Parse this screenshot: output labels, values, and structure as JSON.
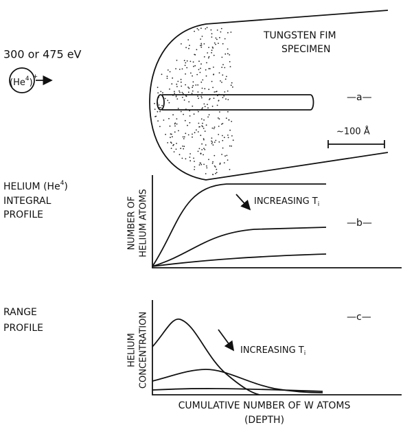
{
  "panel_a": {
    "energy": "300 or 475 eV",
    "ion": {
      "open": "(He",
      "mass": "4",
      "close": ")",
      "charge": "+"
    },
    "specimen_label": [
      "TUNGSTEN FIM",
      "SPECIMEN"
    ],
    "tag": "—a—",
    "scale": "~100 Å"
  },
  "panel_b": {
    "heading": {
      "text": "HELIUM (He",
      "mass": "4",
      "close": ")"
    },
    "heading_lines": [
      "INTEGRAL",
      "PROFILE"
    ],
    "y_axis_label": [
      "NUMBER OF",
      "HELIUM ATOMS"
    ],
    "arrow_label": {
      "text": "INCREASING T",
      "subscript": "i"
    },
    "tag": "—b—"
  },
  "panel_c": {
    "heading_lines": [
      "RANGE",
      "PROFILE"
    ],
    "y_axis_label": [
      "HELIUM",
      "CONCENTRATION"
    ],
    "arrow_label": {
      "text": "INCREASING T",
      "subscript": "i"
    },
    "tag": "—c—",
    "x_axis_label": [
      "CUMULATIVE NUMBER OF W ATOMS",
      "(DEPTH)"
    ]
  }
}
